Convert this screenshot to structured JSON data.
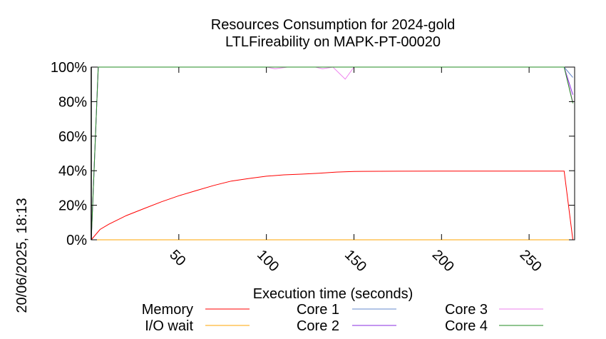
{
  "chart_data": {
    "type": "line",
    "title": [
      "Resources Consumption for 2024-gold",
      "LTLFireability on MAPK-PT-00020"
    ],
    "xlabel": "Execution time (seconds)",
    "ylabel": "",
    "side_label": "20/06/2025, 18:13",
    "xlim": [
      0,
      276
    ],
    "ylim": [
      0,
      100
    ],
    "x_ticks": [
      50,
      100,
      150,
      200,
      250
    ],
    "y_ticks": [
      0,
      20,
      40,
      60,
      80,
      100
    ],
    "y_tick_labels": [
      "0%",
      "20%",
      "40%",
      "60%",
      "80%",
      "100%"
    ],
    "grid": false,
    "legend_position": "bottom",
    "series": [
      {
        "name": "Memory",
        "color": "#ff0000",
        "points": [
          [
            0,
            0
          ],
          [
            5,
            6
          ],
          [
            10,
            9
          ],
          [
            20,
            14
          ],
          [
            30,
            18
          ],
          [
            40,
            22
          ],
          [
            50,
            25.5
          ],
          [
            60,
            28.5
          ],
          [
            70,
            31.5
          ],
          [
            80,
            34
          ],
          [
            90,
            35.5
          ],
          [
            100,
            36.8
          ],
          [
            110,
            37.6
          ],
          [
            120,
            38
          ],
          [
            130,
            38.5
          ],
          [
            140,
            39.2
          ],
          [
            150,
            39.6
          ],
          [
            175,
            39.7
          ],
          [
            200,
            39.8
          ],
          [
            250,
            39.8
          ],
          [
            270,
            39.8
          ],
          [
            275,
            0
          ]
        ]
      },
      {
        "name": "I/O wait",
        "color": "#ffa500",
        "points": [
          [
            0,
            0
          ],
          [
            276,
            0
          ]
        ]
      },
      {
        "name": "Core 1",
        "color": "#6688cc",
        "points": [
          [
            0,
            0
          ],
          [
            4,
            100
          ],
          [
            100,
            100
          ],
          [
            150,
            100
          ],
          [
            270,
            100
          ],
          [
            275,
            94
          ]
        ]
      },
      {
        "name": "Core 2",
        "color": "#8a2be2",
        "points": [
          [
            0,
            0
          ],
          [
            4,
            100
          ],
          [
            100,
            100
          ],
          [
            150,
            100
          ],
          [
            270,
            100
          ],
          [
            275,
            84
          ]
        ]
      },
      {
        "name": "Core 3",
        "color": "#ee82ee",
        "points": [
          [
            0,
            0
          ],
          [
            4,
            100
          ],
          [
            100,
            100
          ],
          [
            105,
            99
          ],
          [
            112,
            100
          ],
          [
            128,
            100
          ],
          [
            132,
            99
          ],
          [
            138,
            100
          ],
          [
            145,
            93
          ],
          [
            150,
            100
          ],
          [
            270,
            100
          ],
          [
            275,
            80
          ]
        ]
      },
      {
        "name": "Core 4",
        "color": "#228b22",
        "points": [
          [
            0,
            0
          ],
          [
            4,
            100
          ],
          [
            270,
            100
          ],
          [
            275,
            79
          ]
        ]
      }
    ]
  }
}
